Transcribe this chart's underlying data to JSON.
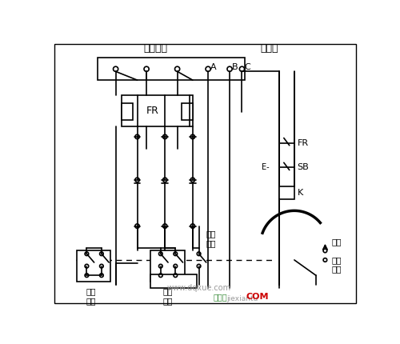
{
  "bg_color": "#ffffff",
  "line_color": "#000000",
  "border_color": "#aaaaaa",
  "title_motor": "接电动机",
  "title_power": "接电源",
  "label_FR_right": "FR",
  "label_SB": "SB",
  "label_K": "K",
  "label_FR_box": "FR",
  "label_star": "星接\n触头",
  "label_run_contact": "运行\n触头",
  "label_start_contact": "起动\n触头",
  "label_start": "起动",
  "label_stop": "停止",
  "label_run": "运行",
  "label_website": "www.dqxue.com",
  "label_jiexiantu": "jiexiantu",
  "gray_color": "#999999",
  "green_color": "#3a8c3a",
  "red_color": "#cc0000"
}
